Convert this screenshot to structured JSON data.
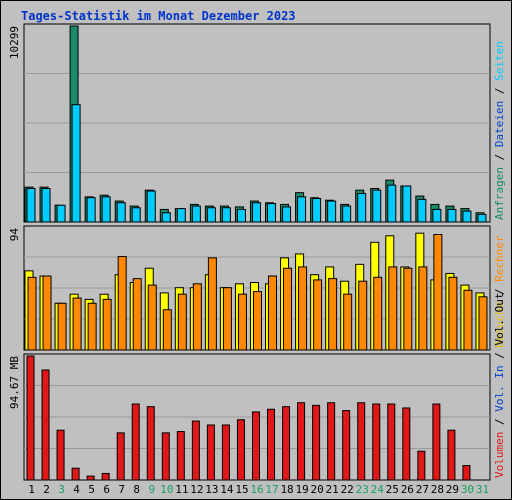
{
  "title": "Tages-Statistik im Monat Dezember 2023",
  "colors": {
    "anfragen": "#1a8a6a",
    "dateien": "#00ccff",
    "seiten": "#00ccff",
    "besuche": "#ffff00",
    "rechner": "#ff8800",
    "vol_out": "#000000",
    "vol_in": "#0000ff",
    "volumen": "#e01818",
    "weekend": "#18a060",
    "weekday": "#000000"
  },
  "chart_data": [
    {
      "type": "bar",
      "name": "top",
      "y_tick_label": "10299",
      "ylim": [
        0,
        11700
      ],
      "right_labels": [
        {
          "text": "Anfragen",
          "color": "#1a8a6a"
        },
        {
          "text": "Dateien",
          "color": "#0044cc"
        },
        {
          "text": "Seiten",
          "color": "#00ccff"
        }
      ],
      "categories": [
        "1",
        "2",
        "3",
        "4",
        "5",
        "6",
        "7",
        "8",
        "9",
        "10",
        "11",
        "12",
        "13",
        "14",
        "15",
        "16",
        "17",
        "18",
        "19",
        "20",
        "21",
        "22",
        "23",
        "24",
        "25",
        "26",
        "27",
        "28",
        "29",
        "30",
        "31"
      ],
      "series": [
        {
          "name": "Anfragen",
          "values": [
            2080,
            2080,
            1000,
            11700,
            1500,
            1600,
            1250,
            950,
            1900,
            750,
            800,
            1050,
            950,
            950,
            900,
            1250,
            1150,
            1050,
            1750,
            1450,
            1300,
            1050,
            1900,
            2000,
            2500,
            2150,
            1550,
            1050,
            950,
            800,
            550
          ]
        },
        {
          "name": "Dateien",
          "values": [
            2000,
            2000,
            1000,
            7000,
            1450,
            1500,
            1150,
            850,
            1850,
            550,
            800,
            950,
            850,
            850,
            750,
            1150,
            1100,
            900,
            1500,
            1400,
            1250,
            950,
            1700,
            1900,
            2200,
            2150,
            1350,
            750,
            750,
            650,
            450
          ]
        }
      ]
    },
    {
      "type": "bar",
      "name": "middle",
      "y_tick_label": "94",
      "ylim": [
        0,
        94
      ],
      "right_labels": [
        {
          "text": "Besuche",
          "color": "#e0c000"
        },
        {
          "text": "Rechner",
          "color": "#ff8800"
        }
      ],
      "series": [
        {
          "name": "Besuche",
          "values": [
            61,
            57,
            36,
            43,
            39,
            43,
            58,
            52,
            63,
            44,
            48,
            48,
            58,
            48,
            51,
            52,
            51,
            71,
            74,
            58,
            64,
            53,
            66,
            83,
            88,
            64,
            90,
            54,
            59,
            50,
            44
          ]
        },
        {
          "name": "Rechner",
          "values": [
            56,
            57,
            36,
            40,
            36,
            39,
            72,
            55,
            50,
            31,
            43,
            51,
            71,
            48,
            43,
            45,
            57,
            63,
            64,
            54,
            55,
            43,
            53,
            56,
            64,
            63,
            64,
            89,
            56,
            46,
            41
          ]
        }
      ]
    },
    {
      "type": "bar",
      "name": "bottom",
      "y_tick_label": "94.67 MB",
      "ylim": [
        0,
        94.67
      ],
      "right_labels": [
        {
          "text": "Volumen",
          "color": "#e01818"
        },
        {
          "text": "Vol. In",
          "color": "#0044cc"
        },
        {
          "text": "Vol. Out",
          "color": "#000000"
        }
      ],
      "series": [
        {
          "name": "Volumen",
          "values": [
            94.67,
            84,
            38,
            9,
            3,
            5,
            36,
            58,
            56,
            36,
            37,
            45,
            42,
            42,
            46,
            52,
            54,
            56,
            59,
            57,
            59,
            53,
            59,
            58,
            58,
            55,
            22,
            58,
            38,
            11,
            0
          ]
        }
      ]
    }
  ],
  "days": [
    {
      "label": "1",
      "weekend": false
    },
    {
      "label": "2",
      "weekend": false
    },
    {
      "label": "3",
      "weekend": true
    },
    {
      "label": "4",
      "weekend": false
    },
    {
      "label": "5",
      "weekend": false
    },
    {
      "label": "6",
      "weekend": false
    },
    {
      "label": "7",
      "weekend": false
    },
    {
      "label": "8",
      "weekend": false
    },
    {
      "label": "9",
      "weekend": true
    },
    {
      "label": "10",
      "weekend": true
    },
    {
      "label": "11",
      "weekend": false
    },
    {
      "label": "12",
      "weekend": false
    },
    {
      "label": "13",
      "weekend": false
    },
    {
      "label": "14",
      "weekend": false
    },
    {
      "label": "15",
      "weekend": false
    },
    {
      "label": "16",
      "weekend": true
    },
    {
      "label": "17",
      "weekend": true
    },
    {
      "label": "18",
      "weekend": false
    },
    {
      "label": "19",
      "weekend": false
    },
    {
      "label": "20",
      "weekend": false
    },
    {
      "label": "21",
      "weekend": false
    },
    {
      "label": "22",
      "weekend": false
    },
    {
      "label": "23",
      "weekend": true
    },
    {
      "label": "24",
      "weekend": true
    },
    {
      "label": "25",
      "weekend": false
    },
    {
      "label": "26",
      "weekend": false
    },
    {
      "label": "27",
      "weekend": false
    },
    {
      "label": "28",
      "weekend": false
    },
    {
      "label": "29",
      "weekend": false
    },
    {
      "label": "30",
      "weekend": true
    },
    {
      "label": "31",
      "weekend": true
    }
  ]
}
